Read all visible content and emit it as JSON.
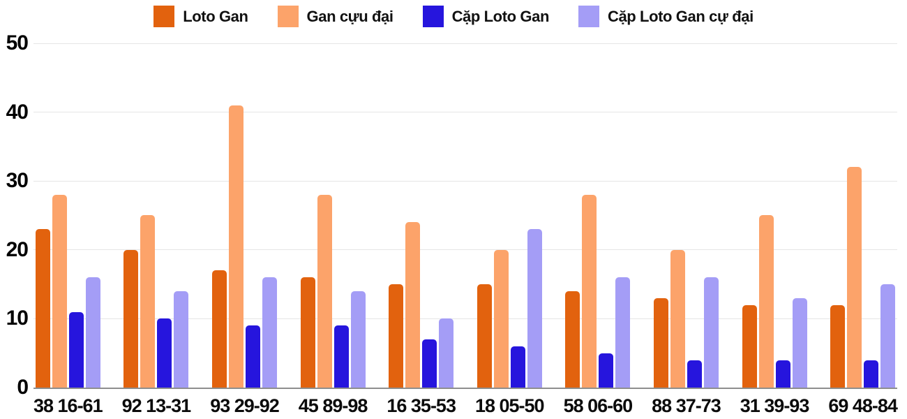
{
  "chart_data": {
    "type": "bar",
    "title": "",
    "xlabel": "",
    "ylabel": "",
    "ylim": [
      0,
      50
    ],
    "yticks": [
      0,
      10,
      20,
      30,
      40,
      50
    ],
    "grid": true,
    "legend_position": "top",
    "categories": [
      "38 16-61",
      "92 13-31",
      "93 29-92",
      "45 89-98",
      "16 35-53",
      "18 05-50",
      "58 06-60",
      "88 37-73",
      "31 39-93",
      "69 48-84"
    ],
    "series": [
      {
        "name": "Loto Gan",
        "color": "#e2620e",
        "values": [
          23,
          20,
          17,
          16,
          15,
          15,
          14,
          13,
          12,
          12
        ]
      },
      {
        "name": "Gan cựu đại",
        "color": "#fca36a",
        "values": [
          28,
          25,
          41,
          28,
          24,
          20,
          28,
          20,
          25,
          32
        ]
      },
      {
        "name": "Cặp Loto Gan",
        "color": "#2615dd",
        "values": [
          11,
          10,
          9,
          9,
          7,
          6,
          5,
          4,
          4,
          4
        ]
      },
      {
        "name": "Cặp Loto Gan cự đại",
        "color": "#a49df6",
        "values": [
          16,
          14,
          16,
          14,
          10,
          23,
          16,
          16,
          13,
          15
        ]
      }
    ]
  },
  "colors": {
    "gridline": "#e6e6e6",
    "axis_line": "#8e8e8e",
    "label_text": "#000000"
  }
}
